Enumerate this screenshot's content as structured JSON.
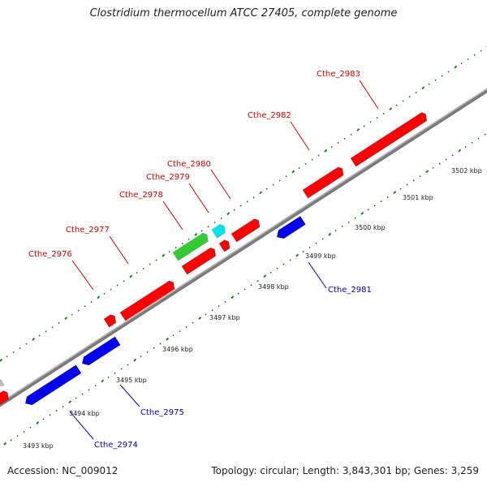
{
  "title": "Clostridium thermocellum ATCC 27405, complete genome",
  "accession": "Accession: NC_009012",
  "summary": "Topology: circular; Length: 3,843,301 bp; Genes: 3,259",
  "colors": {
    "forward_gene": "#ff0000",
    "reverse_gene": "#0000ee",
    "rna_green": "#33cc33",
    "rna_cyan": "#00e5ee",
    "tick": "#1f7f1f",
    "backbone": "#888888",
    "forward_label": "#cc0000",
    "reverse_label": "#0000cc"
  },
  "scale_ticks": [
    {
      "label": "3493 kbp"
    },
    {
      "label": "3494 kbp"
    },
    {
      "label": "3495 kbp"
    },
    {
      "label": "3496 kbp"
    },
    {
      "label": "3497 kbp"
    },
    {
      "label": "3498 kbp"
    },
    {
      "label": "3499 kbp"
    },
    {
      "label": "3500 kbp"
    },
    {
      "label": "3501 kbp"
    },
    {
      "label": "3502 kbp"
    }
  ],
  "gene_labels": [
    {
      "name": "Cthe_2974",
      "strand": "reverse"
    },
    {
      "name": "Cthe_2975",
      "strand": "reverse"
    },
    {
      "name": "Cthe_2976",
      "strand": "forward"
    },
    {
      "name": "Cthe_2977",
      "strand": "forward"
    },
    {
      "name": "Cthe_2978",
      "strand": "forward"
    },
    {
      "name": "Cthe_2979",
      "strand": "forward"
    },
    {
      "name": "Cthe_2980",
      "strand": "forward"
    },
    {
      "name": "Cthe_2981",
      "strand": "reverse"
    },
    {
      "name": "Cthe_2982",
      "strand": "forward"
    },
    {
      "name": "Cthe_2983",
      "strand": "forward"
    }
  ]
}
